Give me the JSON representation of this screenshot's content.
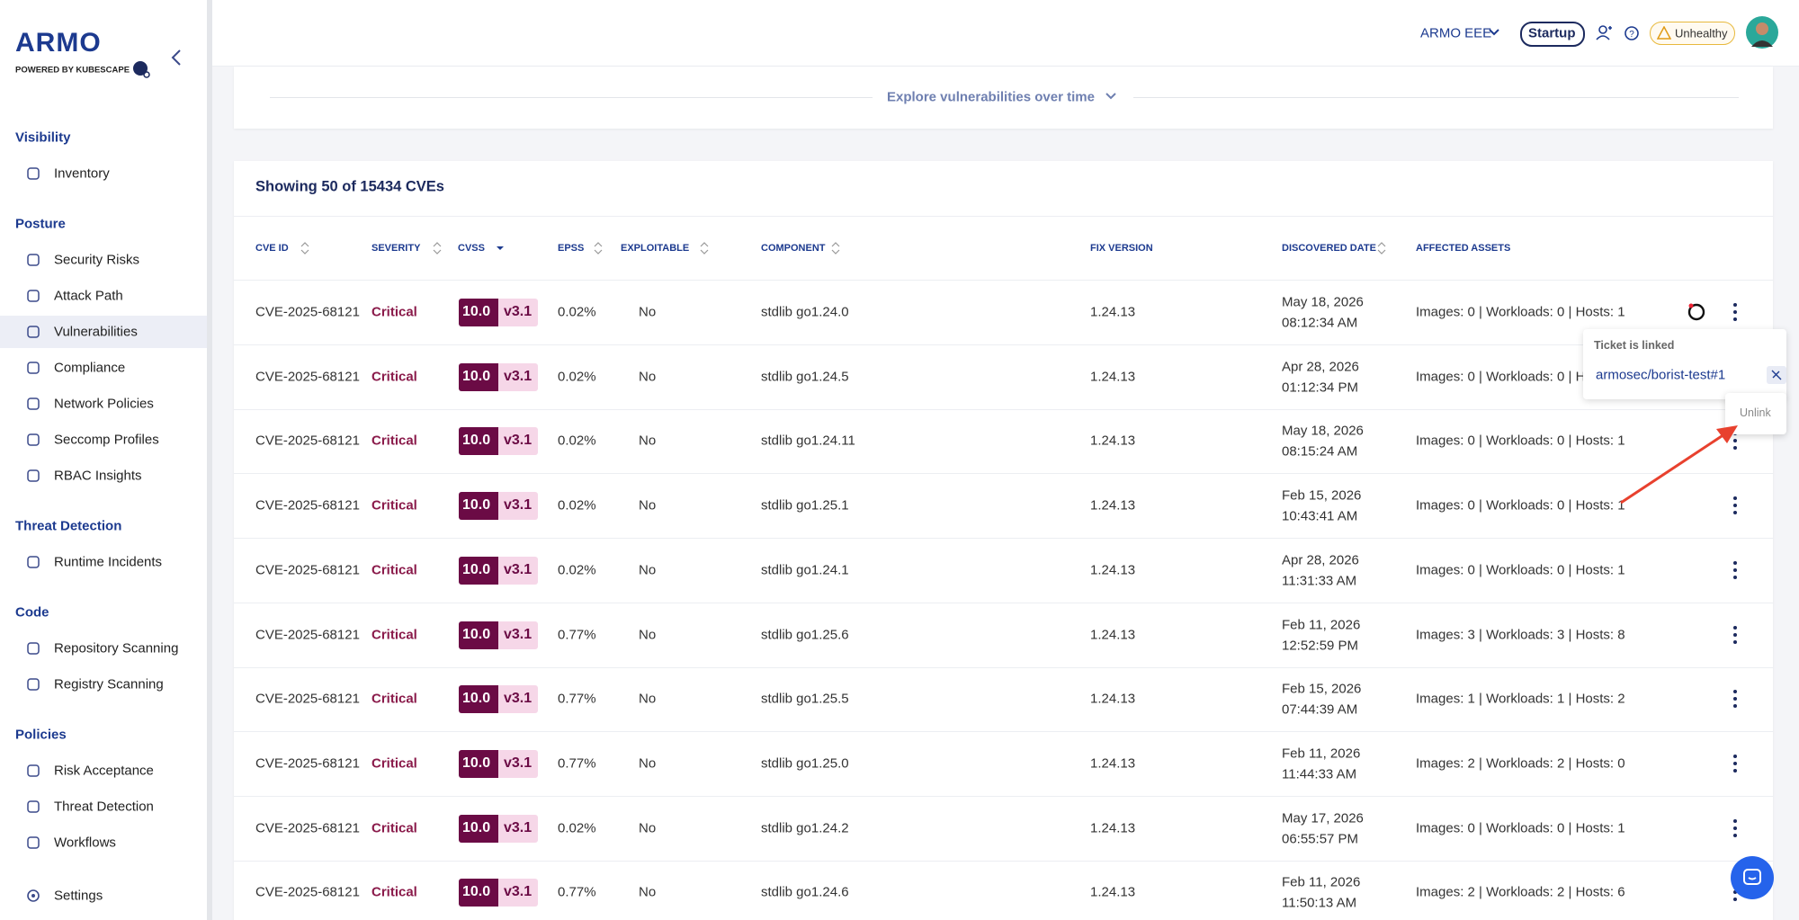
{
  "brand": {
    "logo": "ARMO",
    "tagline": "POWERED BY KUBESCAPE"
  },
  "sidebar": {
    "sections": [
      {
        "title": "Visibility",
        "items": [
          "Inventory"
        ]
      },
      {
        "title": "Posture",
        "items": [
          "Security Risks",
          "Attack Path",
          "Vulnerabilities",
          "Compliance",
          "Network Policies",
          "Seccomp Profiles",
          "RBAC Insights"
        ]
      },
      {
        "title": "Threat Detection",
        "items": [
          "Runtime Incidents"
        ]
      },
      {
        "title": "Code",
        "items": [
          "Repository Scanning",
          "Registry Scanning"
        ]
      },
      {
        "title": "Policies",
        "items": [
          "Risk Acceptance",
          "Threat Detection",
          "Workflows"
        ]
      }
    ],
    "settings": "Settings"
  },
  "header": {
    "account": "ARMO EEE",
    "plan": "Startup",
    "status": "Unhealthy"
  },
  "explore": "Explore vulnerabilities over time",
  "table": {
    "title": "Showing 50 of 15434 CVEs",
    "columns": [
      "CVE ID",
      "SEVERITY",
      "CVSS",
      "EPSS",
      "EXPLOITABLE",
      "COMPONENT",
      "FIX VERSION",
      "DISCOVERED DATE",
      "AFFECTED ASSETS"
    ],
    "rows": [
      [
        "CVE-2025-68121",
        "Critical",
        "10.0",
        "v3.1",
        "0.02%",
        "No",
        "stdlib go1.24.0",
        "1.24.13",
        "May 18, 2026",
        "08:12:34 AM",
        "Images: 0 | Workloads: 0 | Hosts: 1"
      ],
      [
        "CVE-2025-68121",
        "Critical",
        "10.0",
        "v3.1",
        "0.02%",
        "No",
        "stdlib go1.24.5",
        "1.24.13",
        "Apr 28, 2026",
        "01:12:34 PM",
        "Images: 0 | Workloads: 0 | H"
      ],
      [
        "CVE-2025-68121",
        "Critical",
        "10.0",
        "v3.1",
        "0.02%",
        "No",
        "stdlib go1.24.11",
        "1.24.13",
        "May 18, 2026",
        "08:15:24 AM",
        "Images: 0 | Workloads: 0 | Hosts: 1"
      ],
      [
        "CVE-2025-68121",
        "Critical",
        "10.0",
        "v3.1",
        "0.02%",
        "No",
        "stdlib go1.25.1",
        "1.24.13",
        "Feb 15, 2026",
        "10:43:41 AM",
        "Images: 0 | Workloads: 0 | Hosts: 1"
      ],
      [
        "CVE-2025-68121",
        "Critical",
        "10.0",
        "v3.1",
        "0.02%",
        "No",
        "stdlib go1.24.1",
        "1.24.13",
        "Apr 28, 2026",
        "11:31:33 AM",
        "Images: 0 | Workloads: 0 | Hosts: 1"
      ],
      [
        "CVE-2025-68121",
        "Critical",
        "10.0",
        "v3.1",
        "0.77%",
        "No",
        "stdlib go1.25.6",
        "1.24.13",
        "Feb 11, 2026",
        "12:52:59 PM",
        "Images: 3 | Workloads: 3 | Hosts: 8"
      ],
      [
        "CVE-2025-68121",
        "Critical",
        "10.0",
        "v3.1",
        "0.77%",
        "No",
        "stdlib go1.25.5",
        "1.24.13",
        "Feb 15, 2026",
        "07:44:39 AM",
        "Images: 1 | Workloads: 1 | Hosts: 2"
      ],
      [
        "CVE-2025-68121",
        "Critical",
        "10.0",
        "v3.1",
        "0.77%",
        "No",
        "stdlib go1.25.0",
        "1.24.13",
        "Feb 11, 2026",
        "11:44:33 AM",
        "Images: 2 | Workloads: 2 | Hosts: 0"
      ],
      [
        "CVE-2025-68121",
        "Critical",
        "10.0",
        "v3.1",
        "0.02%",
        "No",
        "stdlib go1.24.2",
        "1.24.13",
        "May 17, 2026",
        "06:55:57 PM",
        "Images: 0 | Workloads: 0 | Hosts: 1"
      ],
      [
        "CVE-2025-68121",
        "Critical",
        "10.0",
        "v3.1",
        "0.77%",
        "No",
        "stdlib go1.24.6",
        "1.24.13",
        "Feb 11, 2026",
        "11:50:13 AM",
        "Images: 2 | Workloads: 2 | Hosts: 6"
      ]
    ]
  },
  "popup": {
    "title": "Ticket is linked",
    "link": "armosec/borist-test#1",
    "tooltip": "Unlink"
  }
}
